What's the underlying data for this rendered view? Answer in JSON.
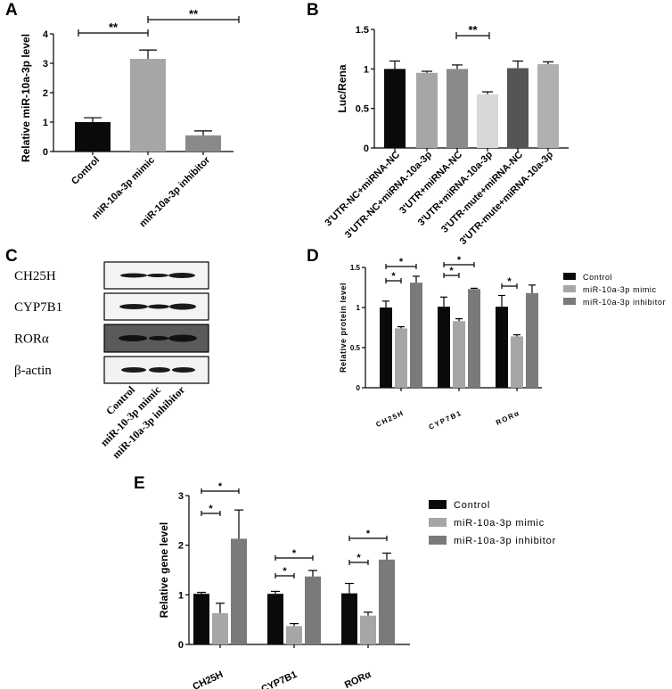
{
  "panels": {
    "A": {
      "letter": "A"
    },
    "B": {
      "letter": "B"
    },
    "C": {
      "letter": "C"
    },
    "D": {
      "letter": "D"
    },
    "E": {
      "letter": "E"
    }
  },
  "colors": {
    "black": "#0a0a0a",
    "gray_light": "#a6a6a6",
    "gray_mid": "#8a8a8a",
    "gray_dark": "#6c6c6c",
    "very_light": "#d8d8d8",
    "dark_gray": "#555555"
  },
  "western_blot": {
    "proteins": [
      "CH25H",
      "CYP7B1",
      "RORα",
      "β-actin"
    ],
    "conditions": [
      "Control",
      "miR-10-3p mimic",
      "miR-10a-3p inhibitor"
    ]
  },
  "chart_data": [
    {
      "id": "A",
      "type": "bar",
      "ylabel": "Relative miR-10a-3p level",
      "xlabel": "",
      "categories": [
        "Control",
        "miR-10a-3p mimic",
        "miR-10a-3p inhibitor"
      ],
      "values": [
        1.0,
        3.15,
        0.55
      ],
      "errors": [
        0.15,
        0.3,
        0.15
      ],
      "colors": [
        "#0a0a0a",
        "#a6a6a6",
        "#8a8a8a"
      ],
      "ylim": [
        0,
        4
      ],
      "yticks": [
        0,
        1,
        2,
        3,
        4
      ],
      "significance": [
        {
          "from": 0,
          "to": 1,
          "label": "**"
        },
        {
          "from": 1,
          "to": 2,
          "label": "**"
        }
      ]
    },
    {
      "id": "B",
      "type": "bar",
      "ylabel": "Luc/Rena",
      "xlabel": "",
      "categories": [
        "3'UTR-NC+miRNA-NC",
        "3'UTR-NC+miRNA-10a-3p",
        "3'UTR+miRNA-NC",
        "3'UTR+miRNA-10a-3p",
        "3'UTR-mute+miRNA-NC",
        "3'UTR-mute+miRNA-10a-3p"
      ],
      "values": [
        1.0,
        0.95,
        1.0,
        0.68,
        1.01,
        1.06
      ],
      "errors": [
        0.1,
        0.02,
        0.05,
        0.03,
        0.09,
        0.03
      ],
      "colors": [
        "#0a0a0a",
        "#a6a6a6",
        "#8a8a8a",
        "#d8d8d8",
        "#555555",
        "#b0b0b0"
      ],
      "ylim": [
        0,
        1.5
      ],
      "yticks": [
        0.0,
        0.5,
        1.0,
        1.5
      ],
      "significance": [
        {
          "from": 2,
          "to": 3,
          "label": "**"
        }
      ]
    },
    {
      "id": "D",
      "type": "bar",
      "ylabel": "Relative protein level",
      "xlabel": "",
      "categories": [
        "CH25H",
        "CYP7B1",
        "RORα"
      ],
      "series": [
        {
          "name": "Control",
          "values": [
            1.0,
            1.01,
            1.01
          ],
          "errors": [
            0.08,
            0.12,
            0.14
          ],
          "color": "#0a0a0a"
        },
        {
          "name": "miR-10a-3p mimic",
          "values": [
            0.74,
            0.83,
            0.64
          ],
          "errors": [
            0.02,
            0.03,
            0.02
          ],
          "color": "#a6a6a6"
        },
        {
          "name": "miR-10a-3p inhibitor",
          "values": [
            1.31,
            1.23,
            1.18
          ],
          "errors": [
            0.08,
            0.01,
            0.1
          ],
          "color": "#7a7a7a"
        }
      ],
      "ylim": [
        0,
        1.5
      ],
      "yticks": [
        0.0,
        0.5,
        1.0,
        1.5
      ],
      "significance": [
        {
          "group": 0,
          "from": 0,
          "to": 1,
          "label": "*",
          "level": 0
        },
        {
          "group": 0,
          "from": 0,
          "to": 2,
          "label": "*",
          "level": 1
        },
        {
          "group": 1,
          "from": 0,
          "to": 1,
          "label": "*",
          "level": 0
        },
        {
          "group": 1,
          "from": 0,
          "to": 2,
          "label": "*",
          "level": 1
        },
        {
          "group": 2,
          "from": 0,
          "to": 1,
          "label": "*",
          "level": 0
        }
      ],
      "legend_position": "right"
    },
    {
      "id": "E",
      "type": "bar",
      "ylabel": "Relative gene level",
      "xlabel": "",
      "categories": [
        "CH25H",
        "CYP7B1",
        "RORα"
      ],
      "series": [
        {
          "name": "Control",
          "values": [
            1.02,
            1.02,
            1.03
          ],
          "errors": [
            0.03,
            0.05,
            0.2
          ],
          "color": "#0a0a0a"
        },
        {
          "name": "miR-10a-3p mimic",
          "values": [
            0.63,
            0.37,
            0.58
          ],
          "errors": [
            0.2,
            0.05,
            0.07
          ],
          "color": "#a6a6a6"
        },
        {
          "name": "miR-10a-3p inhibitor",
          "values": [
            2.13,
            1.37,
            1.71
          ],
          "errors": [
            0.58,
            0.12,
            0.13
          ],
          "color": "#7a7a7a"
        }
      ],
      "ylim": [
        0,
        3
      ],
      "yticks": [
        0,
        1,
        2,
        3
      ],
      "significance": [
        {
          "group": 0,
          "from": 0,
          "to": 1,
          "label": "*",
          "level": 0
        },
        {
          "group": 0,
          "from": 0,
          "to": 2,
          "label": "*",
          "level": 1
        },
        {
          "group": 1,
          "from": 0,
          "to": 1,
          "label": "*",
          "level": 0
        },
        {
          "group": 1,
          "from": 0,
          "to": 2,
          "label": "*",
          "level": 1
        },
        {
          "group": 2,
          "from": 0,
          "to": 1,
          "label": "*",
          "level": 0
        },
        {
          "group": 2,
          "from": 0,
          "to": 2,
          "label": "*",
          "level": 1
        }
      ],
      "legend_position": "right"
    }
  ]
}
